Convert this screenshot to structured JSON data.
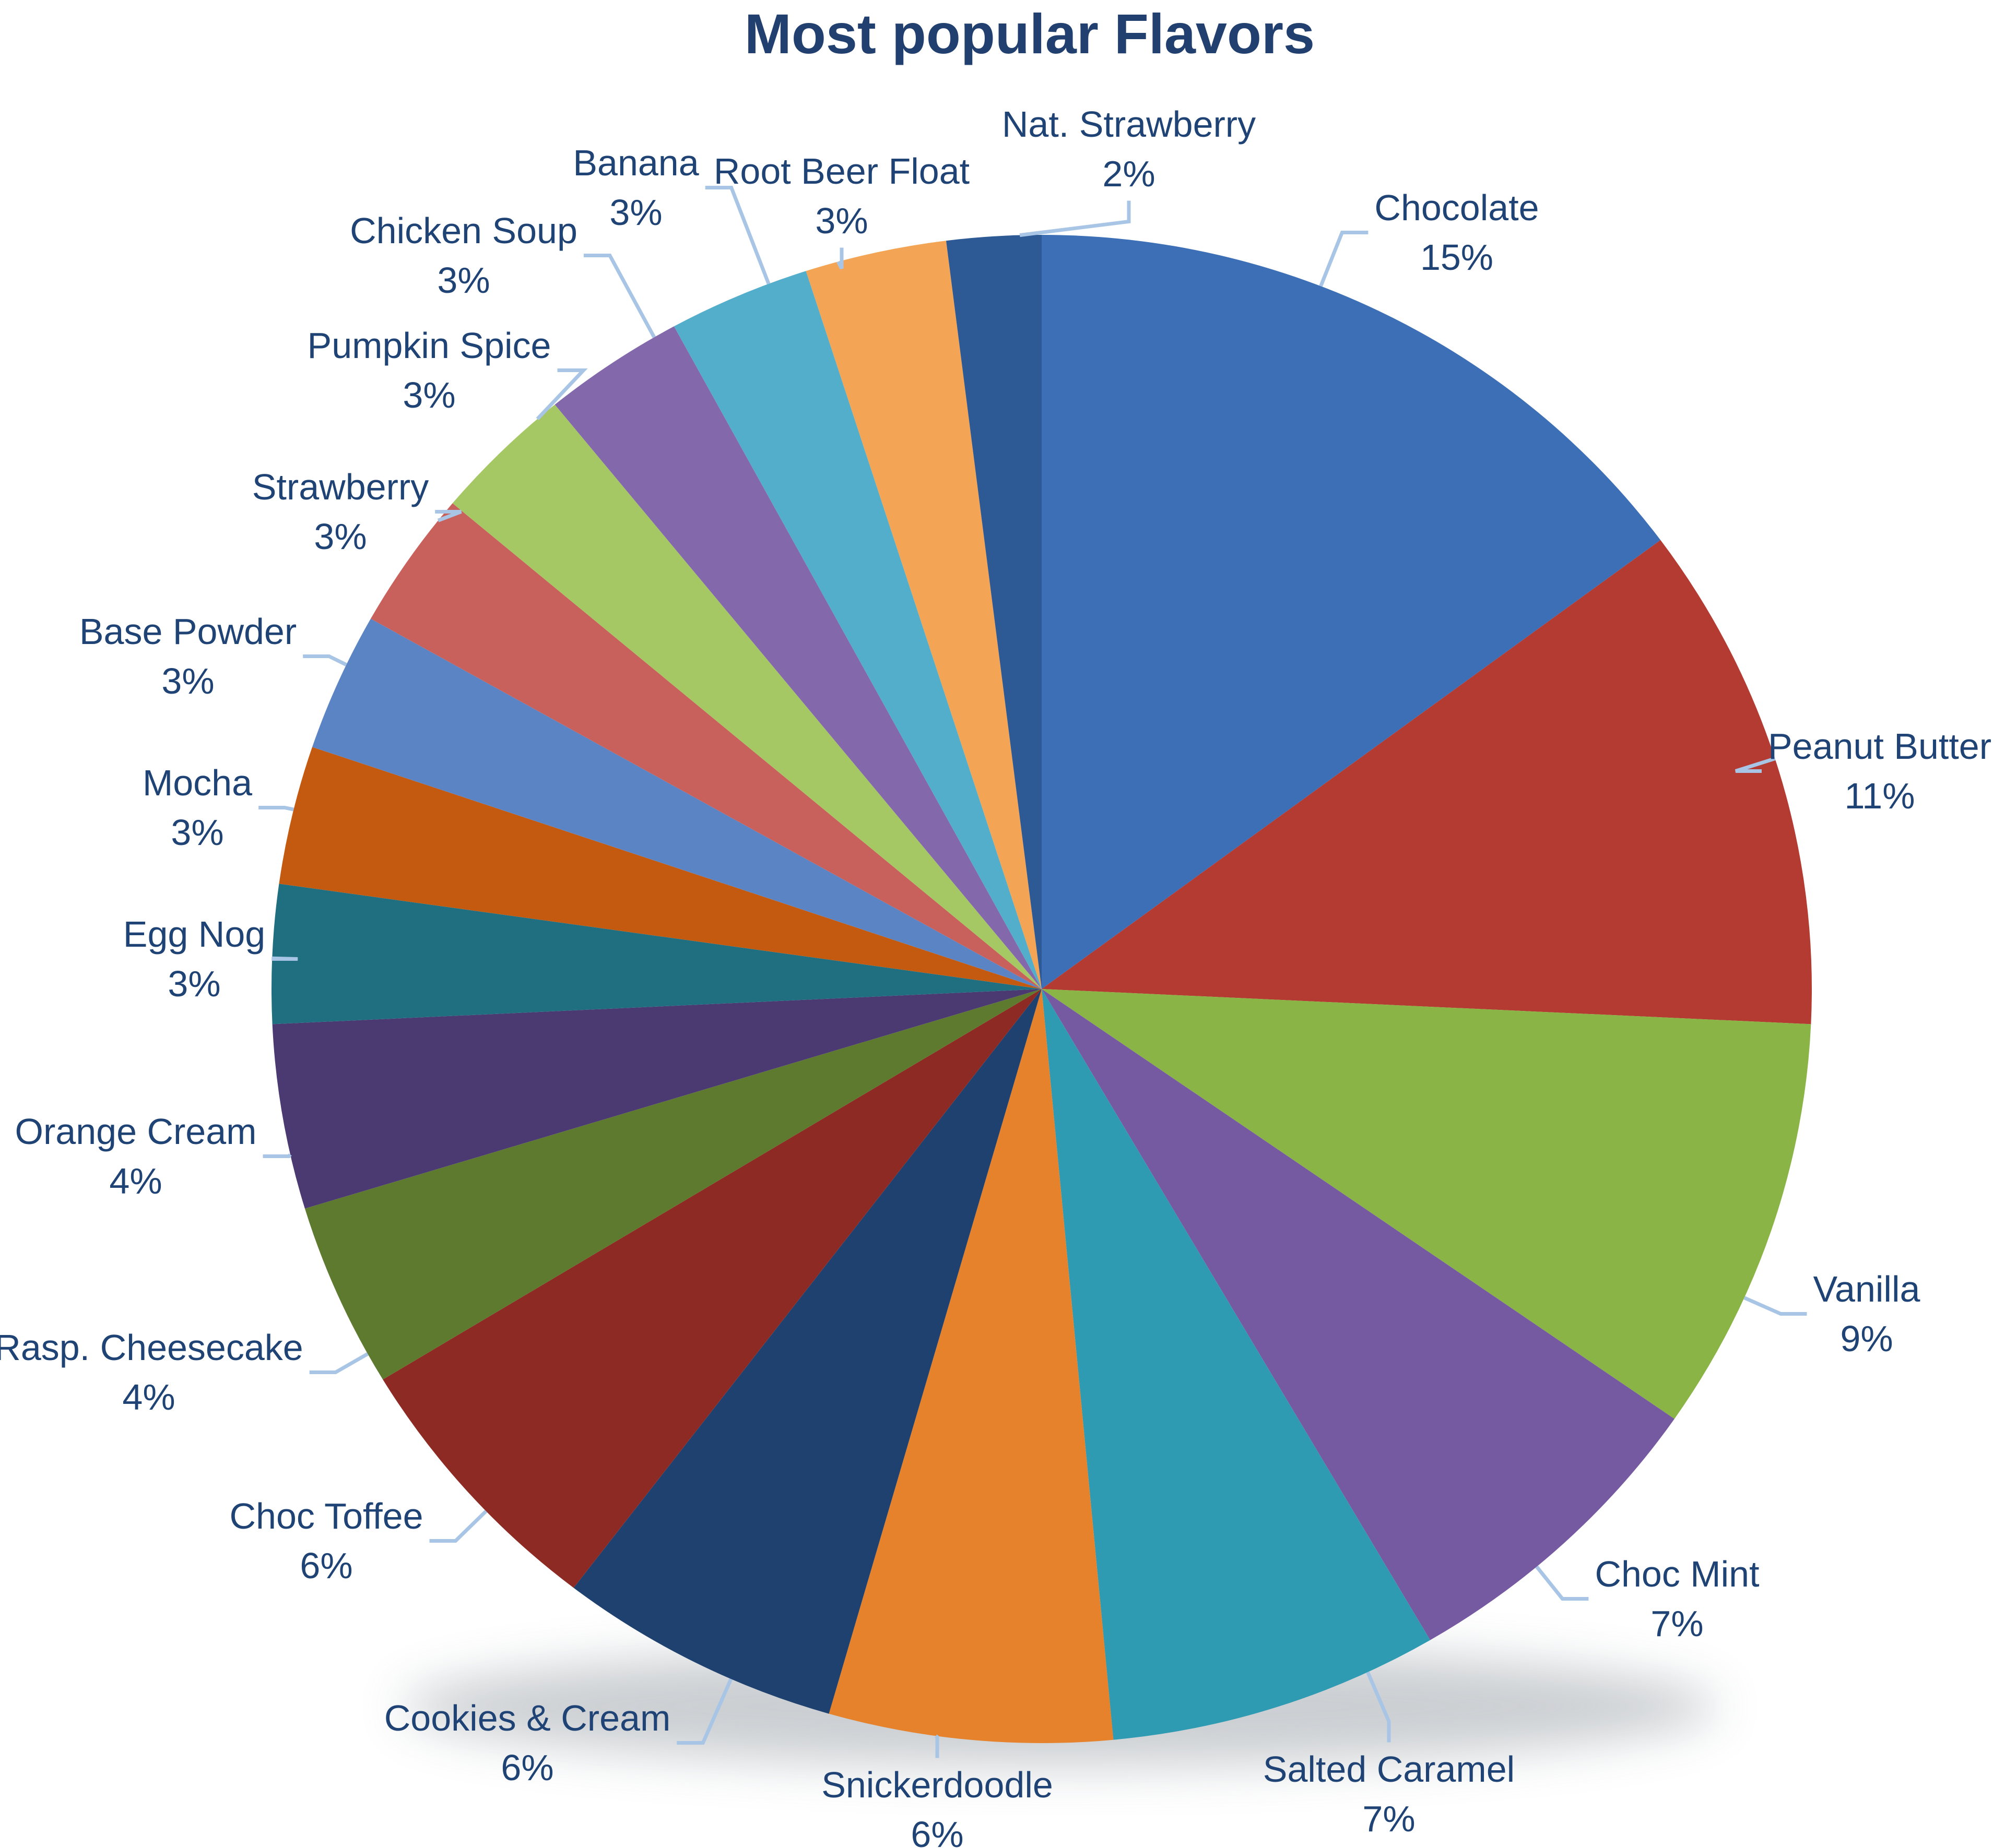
{
  "title": "Most popular Flavors",
  "styles": {
    "background": "#FFFFFF",
    "title_color": "#21406F",
    "label_color": "#1E4374",
    "leader_line_color": "#A8C5E6"
  },
  "chart_data": {
    "type": "pie",
    "title": "Most popular Flavors",
    "legend_position": "none",
    "start_angle_deg": 0,
    "direction": "clockwise",
    "data_labels": "category name and percentage, outside end with leader lines",
    "slices": [
      {
        "label": "Chocolate",
        "pct_label": "15%",
        "value": 15,
        "color": "#3C6FB6"
      },
      {
        "label": "Peanut Butter",
        "pct_label": "11%",
        "value": 11,
        "color": "#B43B32"
      },
      {
        "label": "Vanilla",
        "pct_label": "9%",
        "value": 9,
        "color": "#8AB446"
      },
      {
        "label": "Choc Mint",
        "pct_label": "7%",
        "value": 7,
        "color": "#765AA1"
      },
      {
        "label": "Salted Caramel",
        "pct_label": "7%",
        "value": 7,
        "color": "#2F9BB3"
      },
      {
        "label": "Snickerdoodle",
        "pct_label": "6%",
        "value": 6,
        "color": "#E5822B"
      },
      {
        "label": "Cookies & Cream",
        "pct_label": "6%",
        "value": 6,
        "color": "#1F416F"
      },
      {
        "label": "Choc Toffee",
        "pct_label": "6%",
        "value": 6,
        "color": "#8C2A23"
      },
      {
        "label": "Rasp. Cheesecake",
        "pct_label": "4%",
        "value": 4,
        "color": "#5D7A2F"
      },
      {
        "label": "Orange Cream",
        "pct_label": "4%",
        "value": 4,
        "color": "#4A3A71"
      },
      {
        "label": "Egg Nog",
        "pct_label": "3%",
        "value": 3,
        "color": "#1F6F80"
      },
      {
        "label": "Mocha",
        "pct_label": "3%",
        "value": 3,
        "color": "#C45A10"
      },
      {
        "label": "Base Powder",
        "pct_label": "3%",
        "value": 3,
        "color": "#5A84C4"
      },
      {
        "label": "Strawberry",
        "pct_label": "3%",
        "value": 3,
        "color": "#C8615C"
      },
      {
        "label": "Pumpkin Spice",
        "pct_label": "3%",
        "value": 3,
        "color": "#A5C865"
      },
      {
        "label": "Chicken Soup",
        "pct_label": "3%",
        "value": 3,
        "color": "#8368AB"
      },
      {
        "label": "Banana",
        "pct_label": "3%",
        "value": 3,
        "color": "#52AECB"
      },
      {
        "label": "Root Beer Float",
        "pct_label": "3%",
        "value": 3,
        "color": "#F4A455"
      },
      {
        "label": "Nat. Strawberry",
        "pct_label": "2%",
        "value": 2,
        "color": "#2D5A95"
      }
    ]
  }
}
